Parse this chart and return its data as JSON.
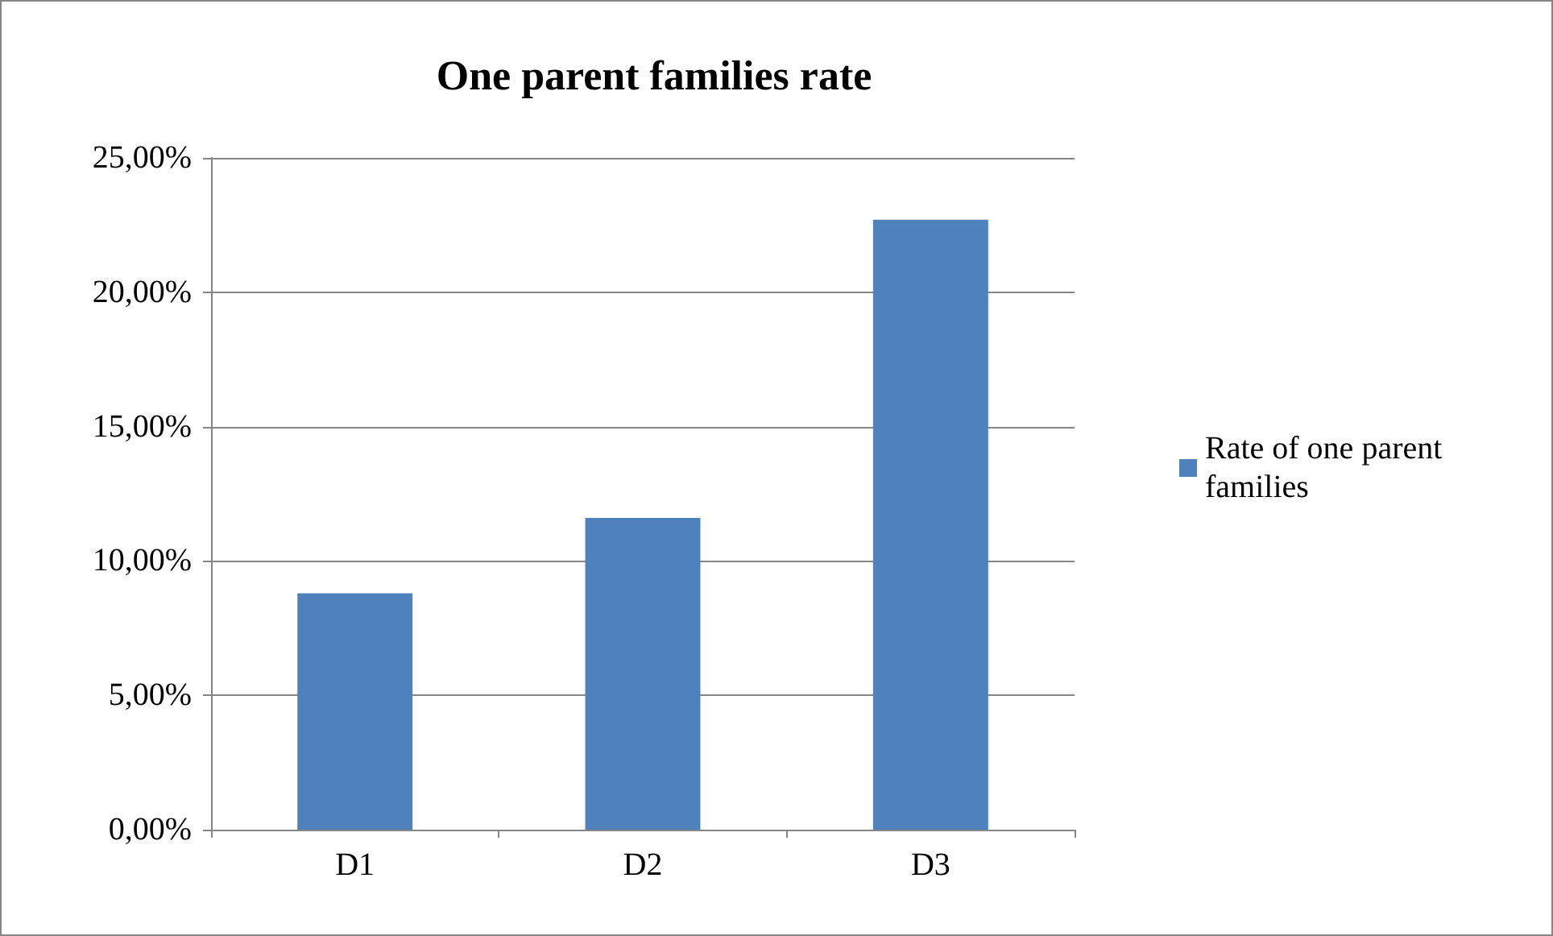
{
  "chart_data": {
    "type": "bar",
    "title": "One parent families rate",
    "categories": [
      "D1",
      "D2",
      "D3"
    ],
    "series": [
      {
        "name": "Rate of one parent families",
        "color": "#4f81bd",
        "values": [
          8.8,
          11.6,
          22.7
        ]
      }
    ],
    "ylim": [
      0,
      25
    ],
    "yticks": [
      {
        "value": 0,
        "label": "0,00%"
      },
      {
        "value": 5,
        "label": "5,00%"
      },
      {
        "value": 10,
        "label": "10,00%"
      },
      {
        "value": 15,
        "label": "15,00%"
      },
      {
        "value": 20,
        "label": "20,00%"
      },
      {
        "value": 25,
        "label": "25,00%"
      }
    ],
    "grid": "y",
    "legend": "right"
  }
}
